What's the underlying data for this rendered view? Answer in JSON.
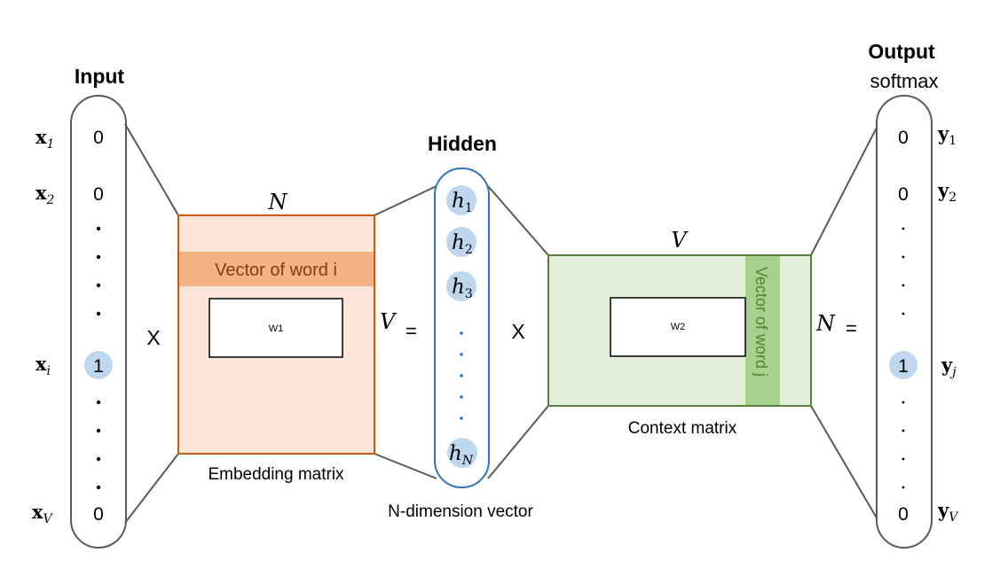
{
  "colors": {
    "embedding_fill": "#fbe5d6",
    "embedding_stroke": "#c55a11",
    "embedding_band": "#f4b183",
    "embedding_band_text": "#843c0c",
    "context_fill": "#e2f0d9",
    "context_stroke": "#548235",
    "context_band": "#a9d18e",
    "context_band_text": "#548235",
    "hidden_stroke": "#2e75b6",
    "highlight_circle": "#bdd7ee",
    "dots_blue": "#2e75b6",
    "line_gray": "#595959"
  },
  "input": {
    "title": "Input",
    "labels": [
      "x",
      "x",
      "x",
      "x"
    ],
    "subscripts": [
      "1",
      "2",
      "i",
      "V"
    ],
    "values": [
      "0",
      "0",
      "1",
      "0"
    ]
  },
  "embedding": {
    "top_label": "N",
    "side_label": "V",
    "band_label": "Vector of word i",
    "inner_label": "W1",
    "caption": "Embedding matrix"
  },
  "hidden": {
    "title": "Hidden",
    "units": [
      "h",
      "h",
      "h",
      "h"
    ],
    "subscripts": [
      "1",
      "2",
      "3",
      "N"
    ],
    "caption": "N-dimension vector"
  },
  "context": {
    "top_label": "V",
    "side_label": "N",
    "band_label": "Vector of word j",
    "inner_label": "W2",
    "caption": "Context matrix"
  },
  "output": {
    "title": "Output",
    "subtitle": "softmax",
    "labels": [
      "y",
      "y",
      "y",
      "y"
    ],
    "subscripts": [
      "1",
      "2",
      "j",
      "V"
    ],
    "values": [
      "0",
      "0",
      "1",
      "0"
    ]
  },
  "operators": {
    "times1": "X",
    "times2": "X",
    "equals1": "=",
    "equals2": "="
  }
}
